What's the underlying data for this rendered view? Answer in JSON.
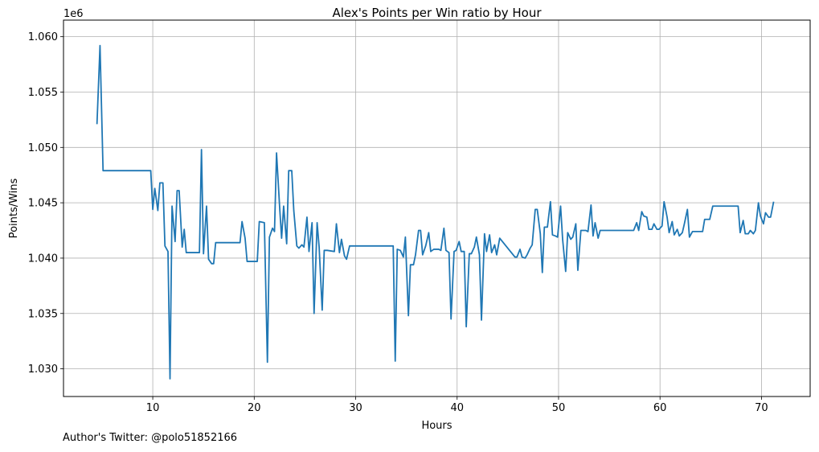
{
  "chart_data": {
    "type": "line",
    "title": "Alex's Points per Win ratio by Hour",
    "xlabel": "Hours",
    "ylabel": "Points/Wins",
    "y_offset_label": "1e6",
    "xlim": [
      1.2,
      74.8
    ],
    "ylim": [
      1.0275,
      1.0615
    ],
    "xticks": [
      10,
      20,
      30,
      40,
      50,
      60,
      70
    ],
    "yticks": [
      1.03,
      1.035,
      1.04,
      1.045,
      1.05,
      1.055,
      1.06
    ],
    "ytick_labels": [
      "1.030",
      "1.035",
      "1.040",
      "1.045",
      "1.050",
      "1.055",
      "1.060"
    ],
    "grid": true,
    "series": [
      {
        "color": "#1f77b4",
        "x": [
          4.5,
          4.8,
          5.1,
          9.8,
          10.0,
          10.2,
          10.5,
          10.7,
          11.0,
          11.2,
          11.5,
          11.7,
          11.9,
          12.2,
          12.4,
          12.6,
          12.9,
          13.1,
          13.3,
          13.6,
          14.6,
          14.8,
          15.0,
          15.3,
          15.5,
          15.8,
          16.0,
          16.2,
          16.5,
          17.3,
          18.6,
          18.8,
          19.1,
          19.3,
          20.1,
          20.3,
          20.5,
          21.0,
          21.3,
          21.5,
          21.8,
          22.0,
          22.2,
          22.5,
          22.7,
          22.9,
          23.2,
          23.4,
          23.7,
          23.9,
          24.2,
          24.4,
          24.7,
          24.9,
          25.2,
          25.4,
          25.7,
          25.9,
          26.2,
          26.4,
          26.7,
          26.9,
          27.2,
          27.9,
          28.1,
          28.4,
          28.6,
          28.9,
          29.1,
          29.4,
          33.7,
          33.9,
          34.1,
          34.4,
          34.7,
          34.9,
          35.2,
          35.4,
          35.7,
          35.9,
          36.2,
          36.4,
          36.6,
          36.9,
          37.2,
          37.4,
          37.7,
          38.2,
          38.4,
          38.7,
          38.9,
          39.2,
          39.4,
          39.7,
          39.9,
          40.2,
          40.4,
          40.7,
          40.9,
          41.2,
          41.4,
          41.7,
          41.9,
          42.2,
          42.4,
          42.7,
          42.9,
          43.2,
          43.4,
          43.7,
          43.9,
          44.2,
          45.7,
          45.9,
          46.2,
          46.4,
          46.7,
          46.9,
          47.2,
          47.4,
          47.7,
          47.9,
          48.2,
          48.4,
          48.6,
          48.9,
          49.2,
          49.4,
          49.7,
          49.9,
          50.2,
          50.4,
          50.7,
          50.9,
          51.2,
          51.4,
          51.7,
          51.9,
          52.2,
          52.4,
          52.7,
          52.9,
          53.2,
          53.4,
          53.6,
          53.9,
          54.1,
          54.4,
          55.4,
          57.4,
          57.7,
          57.9,
          58.2,
          58.4,
          58.7,
          58.9,
          59.2,
          59.4,
          59.7,
          59.9,
          60.2,
          60.4,
          60.7,
          60.9,
          61.2,
          61.4,
          61.7,
          61.9,
          62.2,
          62.4,
          62.7,
          62.9,
          63.2,
          63.4,
          63.7,
          63.9,
          64.2,
          64.4,
          64.7,
          64.9,
          65.2,
          65.4,
          67.7,
          67.9,
          68.2,
          68.4,
          68.7,
          68.9,
          69.2,
          69.4,
          69.7,
          69.9,
          70.2,
          70.4,
          70.7,
          70.9,
          71.2
        ],
        "y": [
          1.0521,
          1.0592,
          1.0479,
          1.0479,
          1.0444,
          1.0463,
          1.0443,
          1.0468,
          1.0468,
          1.0411,
          1.0406,
          1.0291,
          1.0447,
          1.0415,
          1.0461,
          1.0461,
          1.041,
          1.0426,
          1.0405,
          1.0405,
          1.0405,
          1.0498,
          1.0404,
          1.0447,
          1.0399,
          1.0395,
          1.0395,
          1.0414,
          1.0414,
          1.0414,
          1.0414,
          1.0433,
          1.0418,
          1.0397,
          1.0397,
          1.0397,
          1.0433,
          1.0432,
          1.0306,
          1.0419,
          1.0427,
          1.0424,
          1.0495,
          1.0447,
          1.0418,
          1.0447,
          1.0413,
          1.0479,
          1.0479,
          1.0443,
          1.0411,
          1.0409,
          1.0412,
          1.041,
          1.0437,
          1.0406,
          1.0432,
          1.035,
          1.0432,
          1.041,
          1.0353,
          1.0407,
          1.0407,
          1.0406,
          1.0431,
          1.0405,
          1.0417,
          1.0402,
          1.0399,
          1.0411,
          1.0411,
          1.0307,
          1.0408,
          1.0407,
          1.0401,
          1.0419,
          1.0348,
          1.0394,
          1.0394,
          1.0403,
          1.0425,
          1.0425,
          1.0403,
          1.0411,
          1.0423,
          1.0406,
          1.0408,
          1.0408,
          1.0407,
          1.0427,
          1.0407,
          1.0405,
          1.0345,
          1.0406,
          1.0407,
          1.0415,
          1.0406,
          1.0406,
          1.0338,
          1.0404,
          1.0404,
          1.041,
          1.0419,
          1.0403,
          1.0344,
          1.0422,
          1.0406,
          1.0421,
          1.0405,
          1.0412,
          1.0403,
          1.0418,
          1.0401,
          1.0401,
          1.0408,
          1.0401,
          1.04,
          1.0403,
          1.0409,
          1.0412,
          1.0444,
          1.0444,
          1.0422,
          1.0387,
          1.0428,
          1.0428,
          1.0451,
          1.0421,
          1.042,
          1.0419,
          1.0447,
          1.0417,
          1.0388,
          1.0423,
          1.0417,
          1.0419,
          1.0431,
          1.0389,
          1.0425,
          1.0425,
          1.0425,
          1.0424,
          1.0448,
          1.042,
          1.0432,
          1.0418,
          1.0425,
          1.0425,
          1.0425,
          1.0425,
          1.0432,
          1.0425,
          1.0442,
          1.0438,
          1.0437,
          1.0426,
          1.0426,
          1.0431,
          1.0426,
          1.0426,
          1.0429,
          1.0451,
          1.0437,
          1.0423,
          1.0433,
          1.0421,
          1.0426,
          1.042,
          1.0423,
          1.0431,
          1.0444,
          1.0419,
          1.0424,
          1.0424,
          1.0424,
          1.0424,
          1.0424,
          1.0435,
          1.0435,
          1.0435,
          1.0447,
          1.0447,
          1.0447,
          1.0423,
          1.0434,
          1.0422,
          1.0422,
          1.0425,
          1.0422,
          1.0425,
          1.045,
          1.0438,
          1.0431,
          1.0441,
          1.0437,
          1.0437,
          1.0451
        ]
      }
    ]
  },
  "footer": {
    "credit": "Author's Twitter: @polo51852166"
  }
}
